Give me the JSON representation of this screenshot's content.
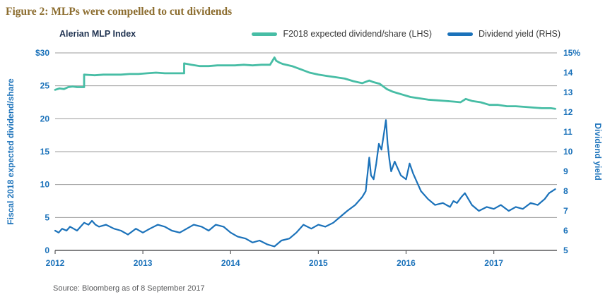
{
  "figure": {
    "title": "Figure 2: MLPs were compelled to cut dividends",
    "chart_label": "Alerian MLP Index",
    "source": "Source: Bloomberg as of 8 September 2017"
  },
  "legend": [
    {
      "label": "F2018 expected dividend/share (LHS)",
      "color": "#47bda5"
    },
    {
      "label": "Dividend yield (RHS)",
      "color": "#1b72ba"
    }
  ],
  "colors": {
    "title": "#8c6d2f",
    "teal": "#47bda5",
    "blue": "#1b72ba",
    "axis_text": "#1b72ba",
    "chart_label": "#1f3250",
    "grid": "#9b9b9b",
    "axis_line": "#58595b"
  },
  "chart_data": {
    "type": "line",
    "title": "Alerian MLP Index",
    "left_axis": {
      "label": "Fiscal 2018 expected dividend/share",
      "min": 0,
      "max": 30,
      "tick_values": [
        30,
        25,
        20,
        15,
        10,
        5,
        0
      ],
      "tick_labels": [
        "$30",
        "25",
        "20",
        "15",
        "10",
        "5",
        "0"
      ]
    },
    "right_axis": {
      "label": "Dividend yield",
      "min": 5,
      "max": 15,
      "tick_values": [
        15,
        14,
        13,
        12,
        11,
        10,
        9,
        8,
        7,
        6,
        5
      ],
      "tick_labels": [
        "15%",
        "14",
        "13",
        "12",
        "11",
        "10",
        "9",
        "8",
        "7",
        "6",
        "5"
      ]
    },
    "x_axis": {
      "min": 2012,
      "max": 2017.72,
      "tick_values": [
        2012,
        2013,
        2014,
        2015,
        2016,
        2017
      ],
      "tick_labels": [
        "2012",
        "2013",
        "2014",
        "2015",
        "2016",
        "2017"
      ]
    },
    "grid": "horizontal",
    "legend_position": "top",
    "series": [
      {
        "name": "F2018 expected dividend/share (LHS)",
        "axis": "left",
        "color": "#47bda5",
        "x": [
          2012.0,
          2012.05,
          2012.1,
          2012.15,
          2012.2,
          2012.25,
          2012.3,
          2012.33,
          2012.33,
          2012.45,
          2012.55,
          2012.65,
          2012.75,
          2012.85,
          2012.95,
          2013.05,
          2013.15,
          2013.25,
          2013.35,
          2013.45,
          2013.47,
          2013.47,
          2013.55,
          2013.65,
          2013.75,
          2013.85,
          2013.95,
          2014.05,
          2014.15,
          2014.25,
          2014.35,
          2014.45,
          2014.5,
          2014.52,
          2014.56,
          2014.6,
          2014.7,
          2014.8,
          2014.9,
          2015.0,
          2015.1,
          2015.2,
          2015.3,
          2015.4,
          2015.5,
          2015.58,
          2015.62,
          2015.7,
          2015.78,
          2015.85,
          2015.95,
          2016.05,
          2016.15,
          2016.25,
          2016.35,
          2016.45,
          2016.55,
          2016.62,
          2016.68,
          2016.75,
          2016.85,
          2016.95,
          2017.05,
          2017.15,
          2017.25,
          2017.35,
          2017.45,
          2017.55,
          2017.65,
          2017.7
        ],
        "y": [
          24.4,
          24.6,
          24.5,
          24.8,
          24.9,
          24.8,
          24.8,
          24.8,
          26.7,
          26.6,
          26.7,
          26.7,
          26.7,
          26.8,
          26.8,
          26.9,
          27.0,
          26.9,
          26.9,
          26.9,
          26.9,
          28.4,
          28.2,
          28.0,
          28.0,
          28.1,
          28.1,
          28.1,
          28.2,
          28.1,
          28.2,
          28.2,
          29.3,
          28.8,
          28.5,
          28.3,
          28.0,
          27.5,
          27.0,
          26.7,
          26.5,
          26.3,
          26.1,
          25.7,
          25.4,
          25.8,
          25.6,
          25.3,
          24.5,
          24.1,
          23.7,
          23.3,
          23.1,
          22.9,
          22.8,
          22.7,
          22.6,
          22.5,
          23.0,
          22.7,
          22.5,
          22.1,
          22.1,
          21.9,
          21.9,
          21.8,
          21.7,
          21.6,
          21.6,
          21.5
        ]
      },
      {
        "name": "Dividend yield (RHS)",
        "axis": "right",
        "color": "#1b72ba",
        "x": [
          2012.0,
          2012.04,
          2012.08,
          2012.13,
          2012.17,
          2012.21,
          2012.25,
          2012.29,
          2012.33,
          2012.38,
          2012.42,
          2012.46,
          2012.5,
          2012.58,
          2012.67,
          2012.75,
          2012.83,
          2012.92,
          2013.0,
          2013.08,
          2013.17,
          2013.25,
          2013.33,
          2013.42,
          2013.5,
          2013.58,
          2013.67,
          2013.75,
          2013.83,
          2013.92,
          2014.0,
          2014.08,
          2014.17,
          2014.25,
          2014.33,
          2014.42,
          2014.5,
          2014.58,
          2014.67,
          2014.75,
          2014.83,
          2014.92,
          2015.0,
          2015.08,
          2015.17,
          2015.25,
          2015.33,
          2015.42,
          2015.5,
          2015.54,
          2015.58,
          2015.6,
          2015.63,
          2015.66,
          2015.69,
          2015.72,
          2015.75,
          2015.77,
          2015.79,
          2015.81,
          2015.83,
          2015.87,
          2015.9,
          2015.94,
          2016.0,
          2016.04,
          2016.08,
          2016.13,
          2016.17,
          2016.25,
          2016.33,
          2016.42,
          2016.5,
          2016.54,
          2016.58,
          2016.63,
          2016.67,
          2016.75,
          2016.83,
          2016.92,
          2017.0,
          2017.08,
          2017.17,
          2017.25,
          2017.33,
          2017.42,
          2017.5,
          2017.58,
          2017.63,
          2017.7
        ],
        "y": [
          6.0,
          5.9,
          6.1,
          6.0,
          6.2,
          6.1,
          6.0,
          6.2,
          6.4,
          6.3,
          6.5,
          6.3,
          6.2,
          6.3,
          6.1,
          6.0,
          5.8,
          6.1,
          5.9,
          6.1,
          6.3,
          6.2,
          6.0,
          5.9,
          6.1,
          6.3,
          6.2,
          6.0,
          6.3,
          6.2,
          5.9,
          5.7,
          5.6,
          5.4,
          5.5,
          5.3,
          5.2,
          5.5,
          5.6,
          5.9,
          6.3,
          6.1,
          6.3,
          6.2,
          6.4,
          6.7,
          7.0,
          7.3,
          7.7,
          8.0,
          9.7,
          8.8,
          8.6,
          9.4,
          10.4,
          10.1,
          11.0,
          11.6,
          10.4,
          9.6,
          9.0,
          9.5,
          9.2,
          8.8,
          8.6,
          9.4,
          8.9,
          8.4,
          8.0,
          7.6,
          7.3,
          7.4,
          7.2,
          7.5,
          7.4,
          7.7,
          7.9,
          7.3,
          7.0,
          7.2,
          7.1,
          7.3,
          7.0,
          7.2,
          7.1,
          7.4,
          7.3,
          7.6,
          7.9,
          8.1
        ]
      }
    ]
  }
}
